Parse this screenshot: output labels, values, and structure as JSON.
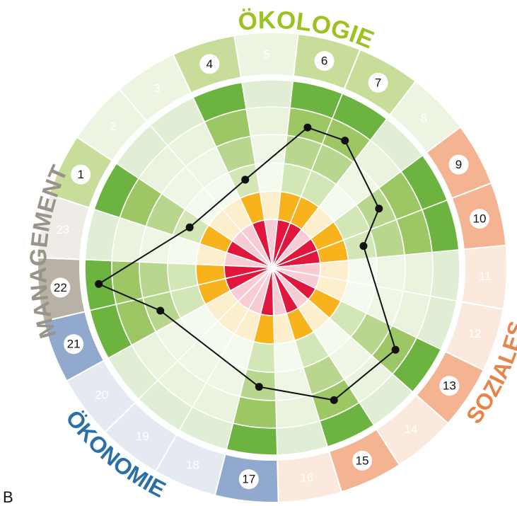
{
  "chart_data": {
    "type": "radar",
    "categories": [
      "1",
      "2",
      "3",
      "4",
      "5",
      "6",
      "7",
      "8",
      "9",
      "10",
      "11",
      "12",
      "13",
      "14",
      "15",
      "16",
      "17",
      "18",
      "19",
      "20",
      "21",
      "22",
      "23"
    ],
    "values": [
      4.9,
      null,
      null,
      4.9,
      null,
      7.7,
      7.8,
      null,
      6.5,
      5.0,
      null,
      null,
      7.9,
      null,
      7.8,
      null,
      6.4,
      null,
      null,
      null,
      6.4,
      9.3,
      null
    ],
    "ylim": [
      0,
      10
    ],
    "category_colors": [
      "#c9dd9a",
      "#edf4e1",
      "#edf4e1",
      "#c9dd9a",
      "#edf4e1",
      "#c9dd9a",
      "#c9dd9a",
      "#edf4e1",
      "#f4b491",
      "#f4b491",
      "#fce9de",
      "#fce9de",
      "#f4b491",
      "#fce9de",
      "#f4b491",
      "#fce9de",
      "#90a9cd",
      "#e4e9f2",
      "#e4e9f2",
      "#e4e9f2",
      "#90a9cd",
      "#b7b1a6",
      "#efece8"
    ],
    "line_color": "#111111",
    "groups": [
      {
        "label": "ÖKOLOGIE",
        "color": "#9bc31e"
      },
      {
        "label": "SOZIALES",
        "color": "#e8834a"
      },
      {
        "label": "ÖKONOMIE",
        "color": "#2a6fa8"
      },
      {
        "label": "MANAGEMENT",
        "color": "#9a9488"
      }
    ]
  },
  "corner_label": "B"
}
